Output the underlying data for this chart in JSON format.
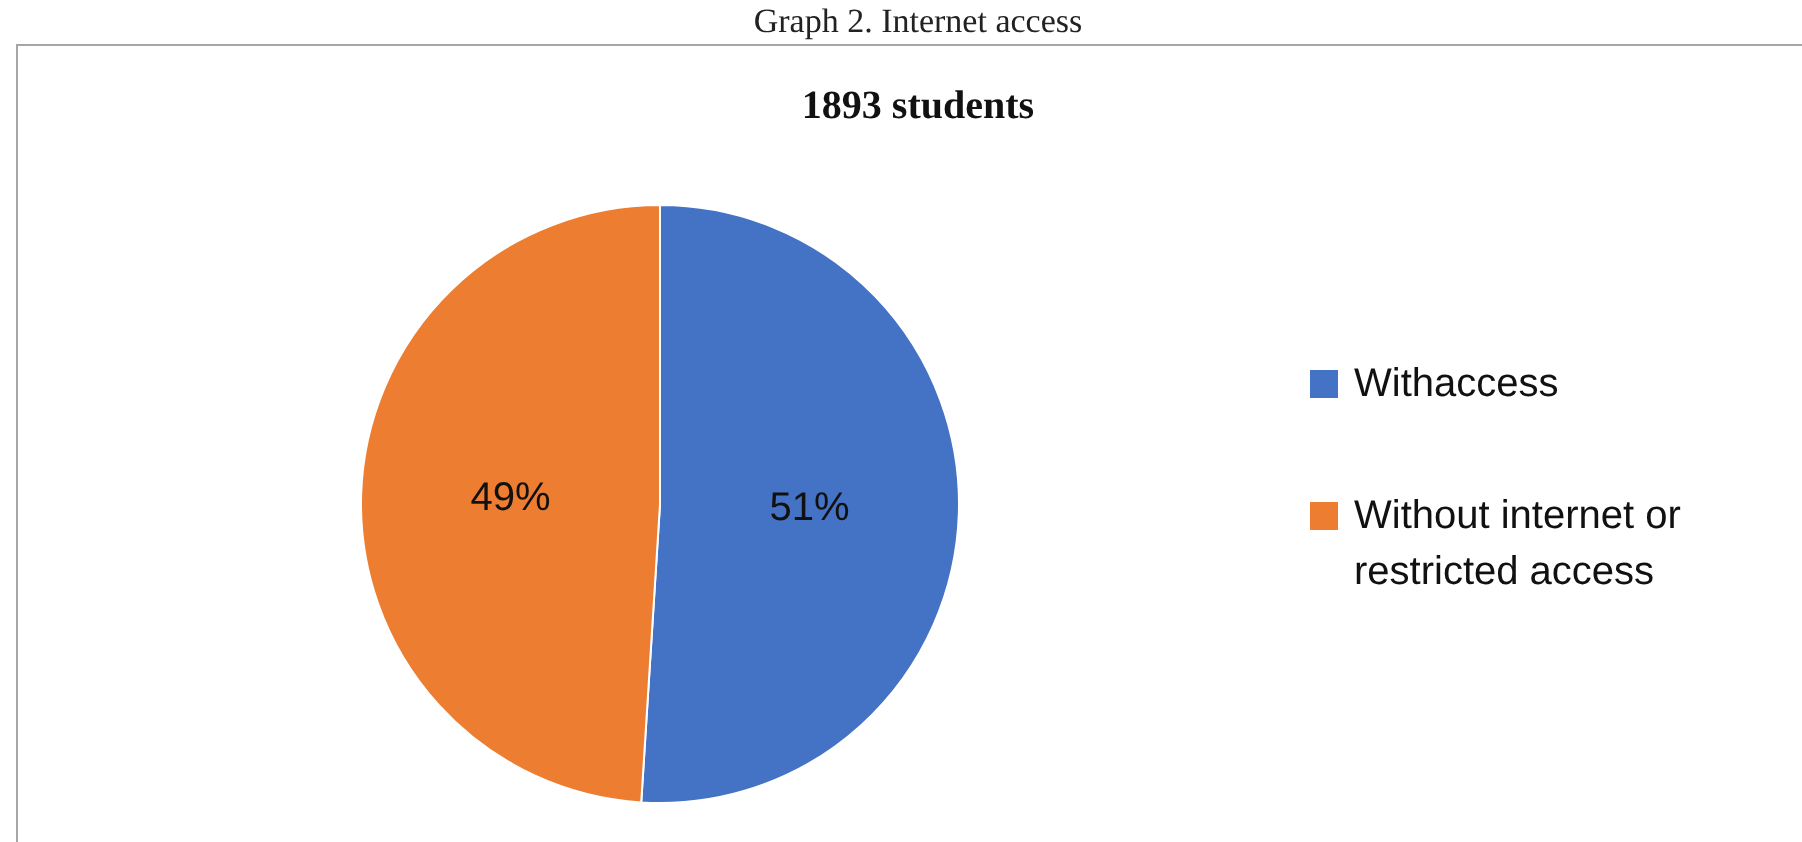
{
  "chart_data": {
    "type": "pie",
    "title": "Graph 2. Internet access",
    "subtitle": "1893 students",
    "categories": [
      "Withaccess",
      "Without internet or restricted access"
    ],
    "values": [
      51,
      49
    ],
    "colors": [
      "#4472c4",
      "#ed7d31"
    ],
    "value_labels": [
      "51%",
      "49%"
    ],
    "legend": "right"
  }
}
